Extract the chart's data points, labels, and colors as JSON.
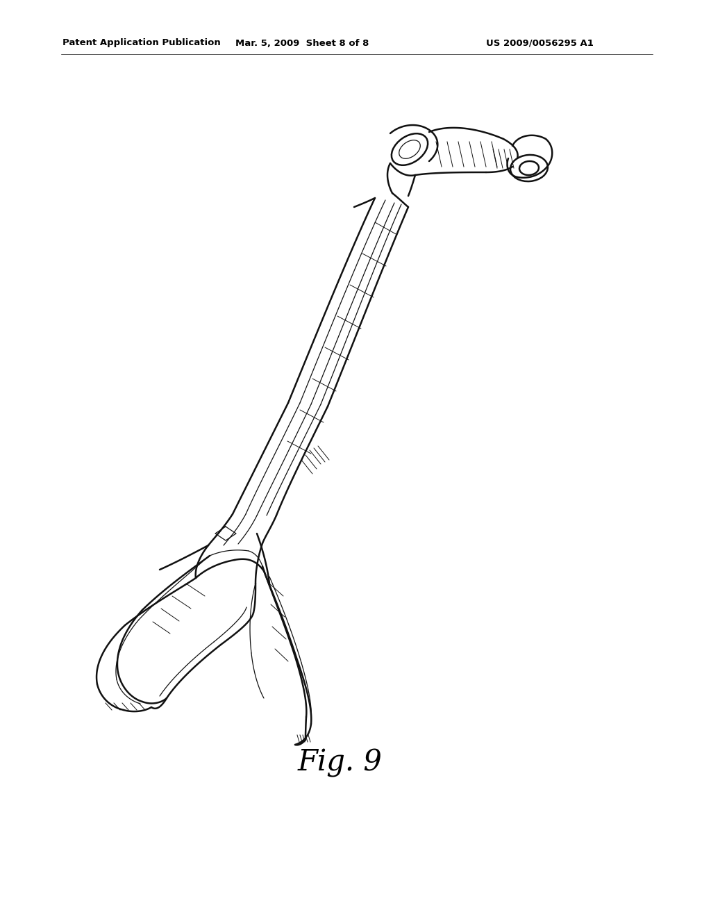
{
  "background_color": "#ffffff",
  "header_left": "Patent Application Publication",
  "header_center": "Mar. 5, 2009  Sheet 8 of 8",
  "header_right": "US 2009/0056295 A1",
  "header_fontsize": 9.5,
  "figure_label": "Fig. 9",
  "figure_label_fontsize": 30,
  "line_color": "#111111",
  "lw_main": 1.8,
  "lw_thin": 0.9,
  "lw_hatch": 0.7
}
